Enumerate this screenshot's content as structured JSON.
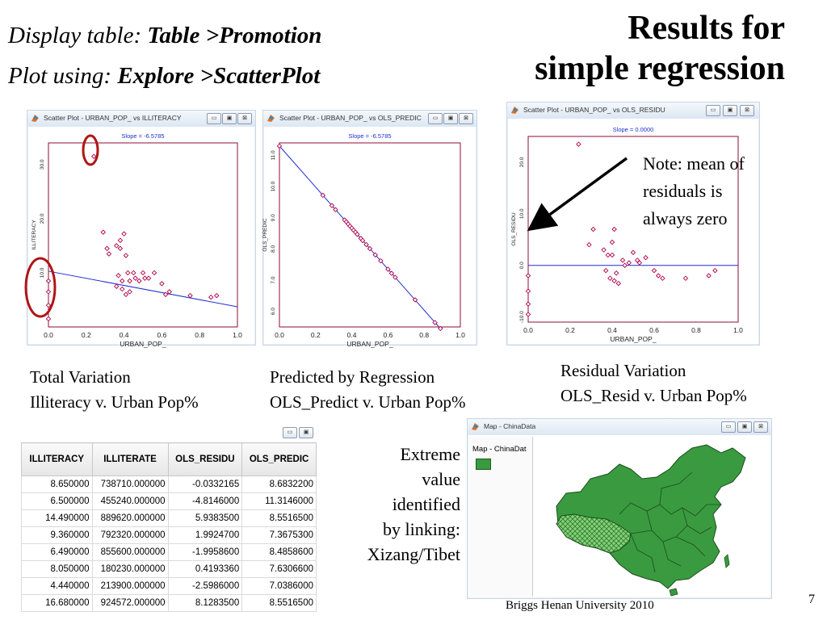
{
  "header": {
    "display_prefix": "Display table: ",
    "display_path": "Table >Promotion",
    "plot_prefix": "Plot using: ",
    "plot_path": "Explore >ScatterPlot",
    "title_line1": "Results for",
    "title_line2": "simple regression"
  },
  "window_buttons": {
    "minimize": "▭",
    "restore": "▣",
    "close": "⊠"
  },
  "plot1": {
    "window_title": "Scatter Plot - URBAN_POP_ vs ILLITERACY",
    "slope": "Slope = -6.5785",
    "xlabel": "URBAN_POP_",
    "ylabel": "ILLITERACY",
    "xticks": [
      "0.0",
      "0.2",
      "0.4",
      "0.6",
      "0.8",
      "1.0"
    ],
    "yticks": [
      "10.0",
      "20.0",
      "30.0"
    ]
  },
  "plot2": {
    "window_title": "Scatter Plot - URBAN_POP_ vs OLS_PREDIC",
    "slope": "Slope = -6.5785",
    "xlabel": "URBAN_POP_",
    "ylabel": "OLS_PREDIC",
    "xticks": [
      "0.0",
      "0.2",
      "0.4",
      "0.6",
      "0.8",
      "1.0"
    ],
    "yticks": [
      "6.0",
      "7.0",
      "8.0",
      "9.0",
      "10.0",
      "11.0"
    ]
  },
  "plot3": {
    "window_title": "Scatter Plot - URBAN_POP_ vs OLS_RESIDU",
    "slope": "Slope = 0.0000",
    "xlabel": "URBAN_POP_",
    "ylabel": "OLS_RESIDU",
    "xticks": [
      "0.0",
      "0.2",
      "0.4",
      "0.6",
      "0.8",
      "1.0"
    ],
    "yticks": [
      "-10.0",
      "0.0",
      "10.0",
      "20.0"
    ]
  },
  "captions": {
    "c1_line1": "Total Variation",
    "c1_line2": "Illiteracy v. Urban Pop%",
    "c2_line1": "Predicted by Regression",
    "c2_line2": "OLS_Predict v. Urban Pop%",
    "c3_line1": "Residual Variation",
    "c3_line2": "OLS_Resid v. Urban Pop%"
  },
  "note": {
    "line1": "Note: mean of",
    "line2": "residuals is",
    "line3": "always zero"
  },
  "table": {
    "columns": [
      "ILLITERACY",
      "ILLITERATE",
      "OLS_RESIDU",
      "OLS_PREDIC"
    ],
    "rows": [
      [
        "8.650000",
        "738710.000000",
        "-0.0332165",
        "8.6832200"
      ],
      [
        "6.500000",
        "455240.000000",
        "-4.8146000",
        "11.3146000"
      ],
      [
        "14.490000",
        "889620.000000",
        "5.9383500",
        "8.5516500"
      ],
      [
        "9.360000",
        "792320.000000",
        "1.9924700",
        "7.3675300"
      ],
      [
        "6.490000",
        "855600.000000",
        "-1.9958600",
        "8.4858600"
      ],
      [
        "8.050000",
        "180230.000000",
        "0.4193360",
        "7.6306600"
      ],
      [
        "4.440000",
        "213900.000000",
        "-2.5986000",
        "7.0386000"
      ],
      [
        "16.680000",
        "924572.000000",
        "8.1283500",
        "8.5516500"
      ]
    ]
  },
  "extreme": {
    "line1": "Extreme",
    "line2": "value",
    "line3": "identified",
    "line4": "by linking:",
    "line5": "Xizang/Tibet"
  },
  "map_window": {
    "title": "Map - ChinaData",
    "legend_label": "Map - ChinaDat"
  },
  "footer": {
    "credit": "Briggs  Henan University 2010",
    "page_number": "7"
  },
  "colors": {
    "point": "#b0004a",
    "regression_line": "#1f2fd0",
    "frame": "#8b0e3a",
    "highlight_circle": "#b01515",
    "arrow": "#000000",
    "map_fill": "#3a9a40",
    "map_selected": "#86d07a"
  },
  "chart_data": [
    {
      "type": "scatter",
      "title": "Scatter Plot - URBAN_POP_ vs ILLITERACY",
      "xlabel": "URBAN_POP_",
      "ylabel": "ILLITERACY",
      "xlim": [
        0,
        1.0
      ],
      "ylim": [
        0,
        34
      ],
      "slope": -6.5785,
      "line": {
        "intercept": 10.3,
        "slope": -6.5785
      },
      "points": [
        [
          0.24,
          31.5
        ],
        [
          0.0,
          8.5
        ],
        [
          0.0,
          6.5
        ],
        [
          0.0,
          4.0
        ],
        [
          0.0,
          1.5
        ],
        [
          0.29,
          17.5
        ],
        [
          0.31,
          14.5
        ],
        [
          0.32,
          13.5
        ],
        [
          0.36,
          15
        ],
        [
          0.38,
          16
        ],
        [
          0.38,
          14.5
        ],
        [
          0.4,
          17.2
        ],
        [
          0.41,
          13.2
        ],
        [
          0.37,
          9.5
        ],
        [
          0.39,
          8.5
        ],
        [
          0.36,
          7.5
        ],
        [
          0.39,
          7
        ],
        [
          0.41,
          6
        ],
        [
          0.43,
          8.5
        ],
        [
          0.43,
          6.5
        ],
        [
          0.45,
          10
        ],
        [
          0.46,
          9
        ],
        [
          0.48,
          8.5
        ],
        [
          0.5,
          10
        ],
        [
          0.51,
          9
        ],
        [
          0.53,
          9
        ],
        [
          0.56,
          10
        ],
        [
          0.6,
          8
        ],
        [
          0.62,
          6
        ],
        [
          0.64,
          6.5
        ],
        [
          0.75,
          5.8
        ],
        [
          0.86,
          5.5
        ],
        [
          0.89,
          5.8
        ],
        [
          0.42,
          10
        ]
      ]
    },
    {
      "type": "scatter",
      "title": "Scatter Plot - URBAN_POP_ vs OLS_PREDIC",
      "xlabel": "URBAN_POP_",
      "ylabel": "OLS_PREDIC",
      "xlim": [
        0,
        1.0
      ],
      "ylim": [
        5.5,
        11.4
      ],
      "slope": -6.5785,
      "line": {
        "intercept": 11.3,
        "slope": -6.5785
      },
      "points": [
        [
          0.0,
          11.3
        ],
        [
          0.24,
          9.72
        ],
        [
          0.29,
          9.39
        ],
        [
          0.31,
          9.26
        ],
        [
          0.36,
          8.93
        ],
        [
          0.37,
          8.87
        ],
        [
          0.38,
          8.8
        ],
        [
          0.39,
          8.73
        ],
        [
          0.4,
          8.67
        ],
        [
          0.41,
          8.6
        ],
        [
          0.42,
          8.54
        ],
        [
          0.43,
          8.47
        ],
        [
          0.45,
          8.34
        ],
        [
          0.46,
          8.27
        ],
        [
          0.48,
          8.14
        ],
        [
          0.5,
          8.01
        ],
        [
          0.53,
          7.81
        ],
        [
          0.56,
          7.62
        ],
        [
          0.6,
          7.35
        ],
        [
          0.62,
          7.22
        ],
        [
          0.64,
          7.09
        ],
        [
          0.75,
          6.37
        ],
        [
          0.86,
          5.64
        ],
        [
          0.89,
          5.45
        ]
      ]
    },
    {
      "type": "scatter",
      "title": "Scatter Plot - URBAN_POP_ vs OLS_RESIDU",
      "xlabel": "URBAN_POP_",
      "ylabel": "OLS_RESIDU",
      "xlim": [
        0,
        1.0
      ],
      "ylim": [
        -11,
        25
      ],
      "slope": 0.0,
      "line": {
        "intercept": 0.0,
        "slope": 0.0
      },
      "points": [
        [
          0.24,
          23.5
        ],
        [
          0.0,
          -2
        ],
        [
          0.0,
          -5
        ],
        [
          0.0,
          -7.5
        ],
        [
          0.0,
          -9.5
        ],
        [
          0.29,
          4
        ],
        [
          0.31,
          7
        ],
        [
          0.36,
          3
        ],
        [
          0.38,
          2
        ],
        [
          0.4,
          4.5
        ],
        [
          0.41,
          7
        ],
        [
          0.4,
          2
        ],
        [
          0.37,
          -1
        ],
        [
          0.39,
          -2.5
        ],
        [
          0.41,
          -3
        ],
        [
          0.42,
          -1.5
        ],
        [
          0.43,
          -3.5
        ],
        [
          0.45,
          1
        ],
        [
          0.46,
          0
        ],
        [
          0.48,
          0.5
        ],
        [
          0.5,
          2.5
        ],
        [
          0.52,
          1
        ],
        [
          0.53,
          0.5
        ],
        [
          0.56,
          1.5
        ],
        [
          0.6,
          -1
        ],
        [
          0.62,
          -2
        ],
        [
          0.64,
          -2.5
        ],
        [
          0.75,
          -2.5
        ],
        [
          0.86,
          -2
        ],
        [
          0.89,
          -1
        ]
      ]
    }
  ]
}
